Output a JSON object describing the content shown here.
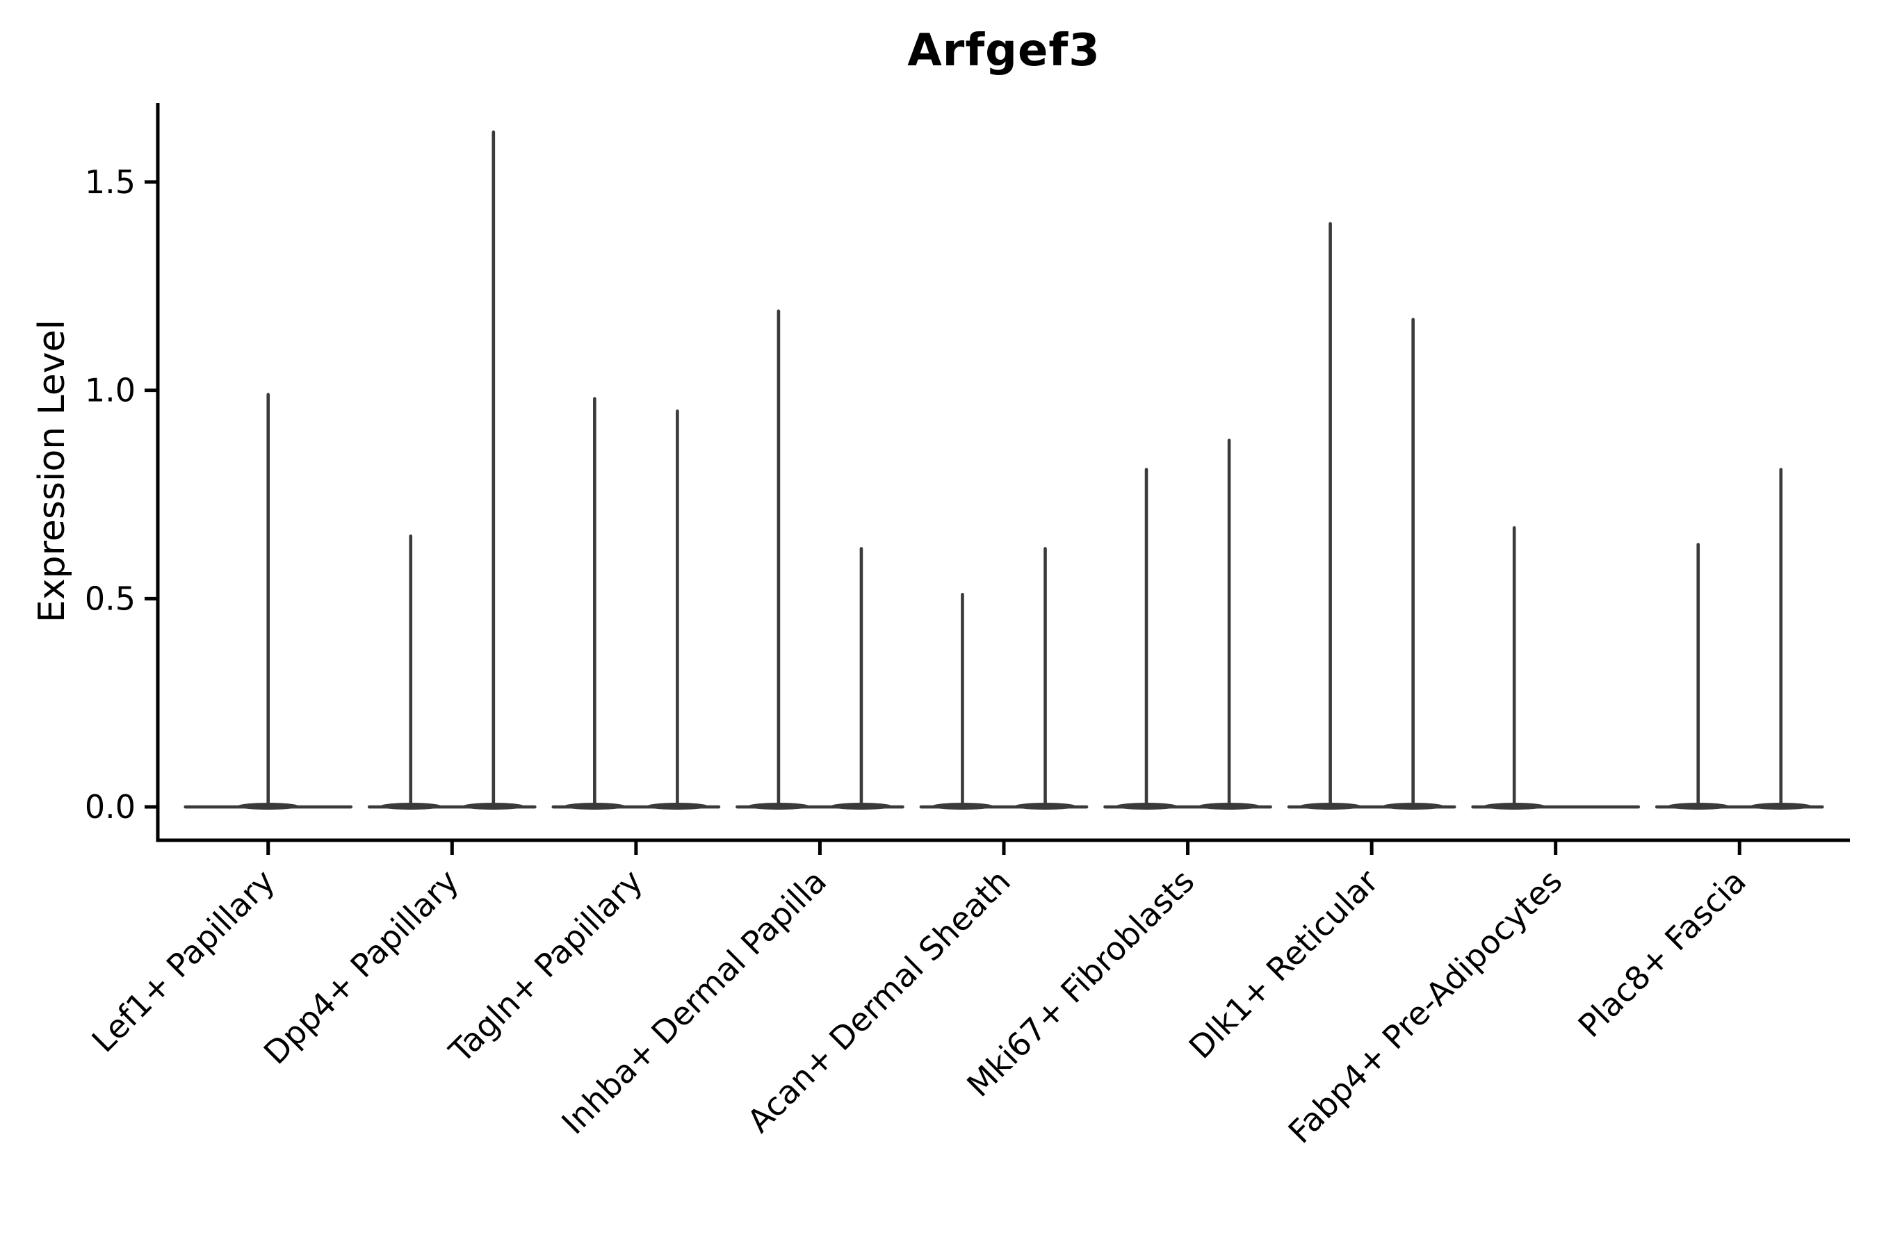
{
  "title": "Arfgef3",
  "chart_data": {
    "type": "violin",
    "title": "Arfgef3",
    "xlabel": "",
    "ylabel": "Expression Level",
    "legend": "none",
    "grid": false,
    "background": "#ffffff",
    "colors": {
      "violin": "#3a3a3a",
      "axis": "#000000",
      "text": "#000000"
    },
    "ylim": [
      -0.08,
      1.69
    ],
    "yticks": [
      {
        "value": 0.0,
        "label": "0.0"
      },
      {
        "value": 0.5,
        "label": "0.5"
      },
      {
        "value": 1.0,
        "label": "1.0"
      },
      {
        "value": 1.5,
        "label": "1.5"
      }
    ],
    "categories": [
      "Lef1+ Papillary",
      "Dpp4+ Papillary",
      "Tagln+ Papillary",
      "Inhba+ Dermal Papilla",
      "Acan+ Dermal Sheath",
      "Mki67+ Fibroblasts",
      "Dlk1+ Reticular",
      "Fabp4+ Pre-Adipocytes",
      "Plac8+ Fascia"
    ],
    "violins": [
      {
        "category": "Lef1+ Papillary",
        "groups": [
          {
            "position": "center",
            "max_expression": 0.99
          }
        ]
      },
      {
        "category": "Dpp4+ Papillary",
        "groups": [
          {
            "position": "left",
            "max_expression": 0.65
          },
          {
            "position": "right",
            "max_expression": 1.62
          }
        ]
      },
      {
        "category": "Tagln+ Papillary",
        "groups": [
          {
            "position": "left",
            "max_expression": 0.98
          },
          {
            "position": "right",
            "max_expression": 0.95
          }
        ]
      },
      {
        "category": "Inhba+ Dermal Papilla",
        "groups": [
          {
            "position": "left",
            "max_expression": 1.19
          },
          {
            "position": "right",
            "max_expression": 0.62
          }
        ]
      },
      {
        "category": "Acan+ Dermal Sheath",
        "groups": [
          {
            "position": "left",
            "max_expression": 0.51
          },
          {
            "position": "right",
            "max_expression": 0.62
          }
        ]
      },
      {
        "category": "Mki67+ Fibroblasts",
        "groups": [
          {
            "position": "left",
            "max_expression": 0.81
          },
          {
            "position": "right",
            "max_expression": 0.88
          }
        ]
      },
      {
        "category": "Dlk1+ Reticular",
        "groups": [
          {
            "position": "left",
            "max_expression": 1.4
          },
          {
            "position": "right",
            "max_expression": 1.17
          }
        ]
      },
      {
        "category": "Fabp4+ Pre-Adipocytes",
        "groups": [
          {
            "position": "left",
            "max_expression": 0.67
          },
          {
            "position": "right",
            "max_expression": 0.0
          }
        ]
      },
      {
        "category": "Plac8+ Fascia",
        "groups": [
          {
            "position": "left",
            "max_expression": 0.63
          },
          {
            "position": "right",
            "max_expression": 0.81
          }
        ]
      }
    ]
  }
}
